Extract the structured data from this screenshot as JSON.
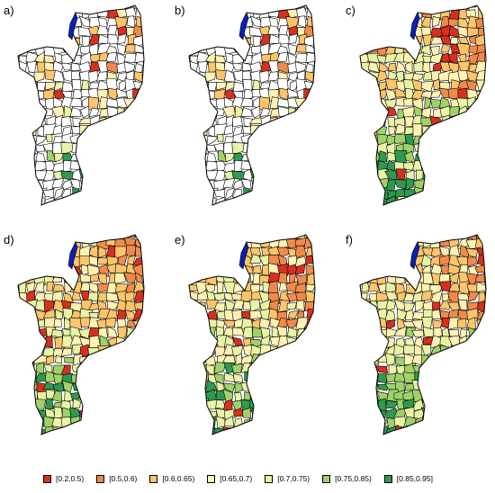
{
  "panels": [
    {
      "label": "a)",
      "style": "sparse"
    },
    {
      "label": "b)",
      "style": "sparse"
    },
    {
      "label": "c)",
      "style": "full"
    },
    {
      "label": "d)",
      "style": "full"
    },
    {
      "label": "e)",
      "style": "full"
    },
    {
      "label": "f)",
      "style": "full"
    }
  ],
  "legend": [
    {
      "label": "[0.2,0.5)",
      "color": "#d7301f"
    },
    {
      "label": "[0.5,0.6)",
      "color": "#f08a4b"
    },
    {
      "label": "[0.6,0.65)",
      "color": "#fcc56b"
    },
    {
      "label": "[0.65,0.7)",
      "color": "#fdf2b4"
    },
    {
      "label": "[0.7,0.75)",
      "color": "#e9f3a6"
    },
    {
      "label": "[0.75,0.85)",
      "color": "#9fd36a"
    },
    {
      "label": "[0.85,0.95]",
      "color": "#2f9a4f"
    }
  ],
  "lake_color": "#0b1fb5",
  "missing_color": "#ffffff"
}
